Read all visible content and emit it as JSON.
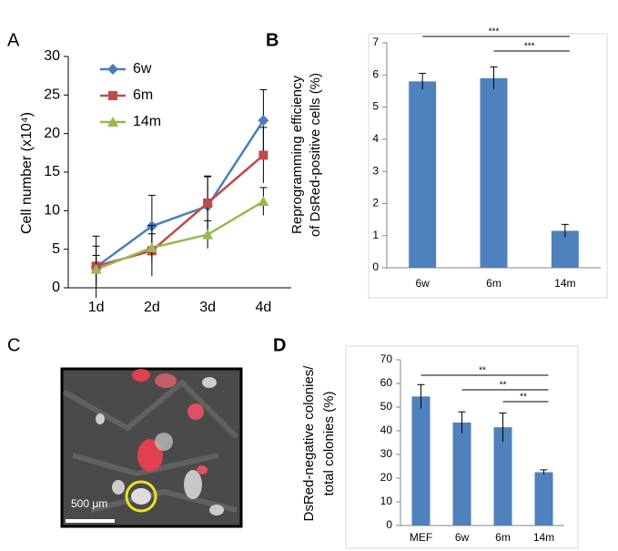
{
  "panel_labels": [
    "A",
    "B",
    "C",
    "D"
  ],
  "image": {
    "scale_bar_label": "500 μm"
  },
  "chart_data": [
    {
      "type": "line",
      "ylabel": "Cell number (x10⁴)",
      "categories": [
        "1d",
        "2d",
        "3d",
        "4d"
      ],
      "series": [
        {
          "name": "6w",
          "color": "#4a7ebb",
          "marker": "diamond",
          "values": [
            2.7,
            8.0,
            10.6,
            21.7
          ],
          "errors": [
            4.0,
            4.0,
            3.8,
            4.0
          ]
        },
        {
          "name": "6m",
          "color": "#be4b48",
          "marker": "square",
          "values": [
            2.8,
            4.8,
            11.0,
            17.2
          ],
          "errors": [
            2.6,
            3.3,
            3.5,
            3.6
          ]
        },
        {
          "name": "14m",
          "color": "#98b954",
          "marker": "triangle",
          "values": [
            2.4,
            5.2,
            6.9,
            11.2
          ],
          "errors": [
            1.8,
            1.8,
            1.8,
            1.8
          ]
        }
      ],
      "ylim": [
        0,
        30
      ],
      "yticks": [
        0,
        5,
        10,
        15,
        20,
        25,
        30
      ],
      "grid": false,
      "legend": "upper-left"
    },
    {
      "type": "bar",
      "ylabel": [
        "Reprogramming efficiency",
        "of DsRed-positive cells (%)"
      ],
      "categories": [
        "6w",
        "6m",
        "14m"
      ],
      "values": [
        5.8,
        5.9,
        1.15
      ],
      "errors": [
        0.25,
        0.35,
        0.2
      ],
      "color": "#4f81bd",
      "ylim": [
        0,
        7
      ],
      "yticks": [
        0,
        1,
        2,
        3,
        4,
        5,
        6,
        7
      ],
      "grid": false,
      "annotations": [
        "***",
        "***"
      ]
    },
    {
      "type": "bar",
      "ylabel": [
        "DsRed-negative colonies/",
        "total colonies (%)"
      ],
      "categories": [
        "MEF",
        "6w",
        "6m",
        "14m"
      ],
      "values": [
        54.5,
        43.5,
        41.5,
        22.5
      ],
      "errors": [
        5,
        4.5,
        6,
        1
      ],
      "color": "#4f81bd",
      "ylim": [
        0,
        70
      ],
      "yticks": [
        0,
        10,
        20,
        30,
        40,
        50,
        60,
        70
      ],
      "grid": false,
      "annotations": [
        "**",
        "**",
        "**"
      ]
    }
  ]
}
